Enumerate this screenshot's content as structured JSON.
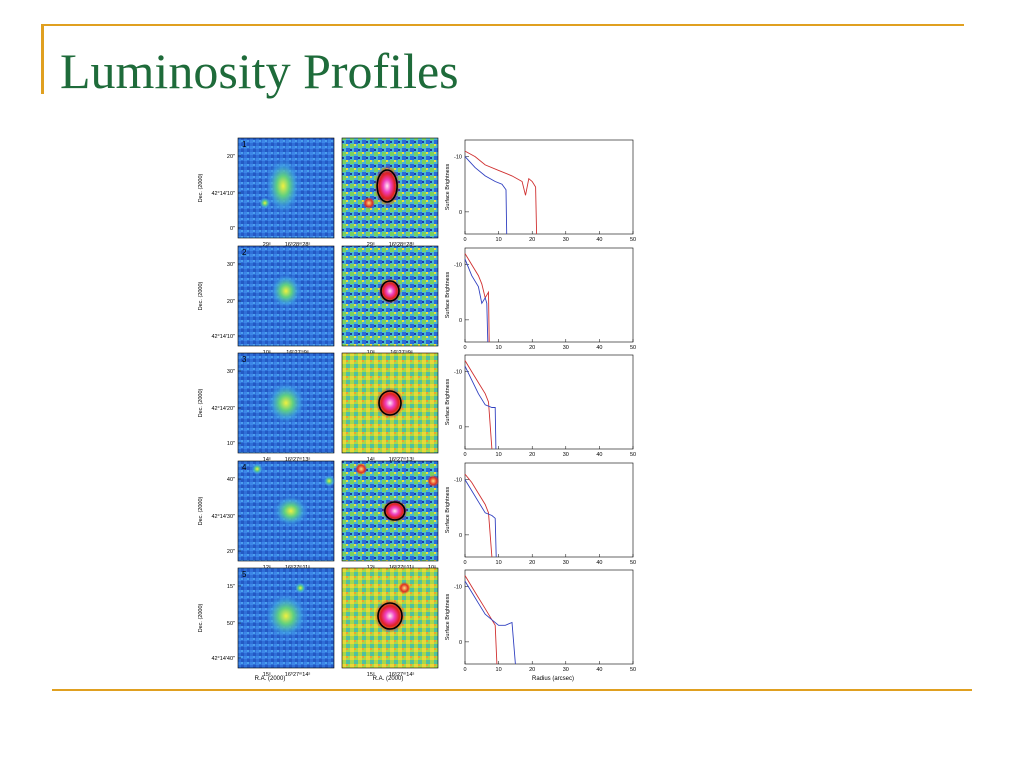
{
  "slide": {
    "title": "Luminosity Profiles"
  },
  "figure": {
    "dec_label": "Dec. (2000)",
    "ra_label": "R.A. (2000)",
    "ylabel": "Surface Brightness",
    "xlabel": "Radius (arcsec)",
    "ytick_neg10": "-10",
    "ytick_0": "0",
    "xticks": [
      "0",
      "10",
      "20",
      "30",
      "40",
      "50"
    ],
    "rows": [
      {
        "num": "1",
        "dec_ticks": [
          "20\"",
          "42°14'10\"",
          "0\""
        ],
        "ra_left": "29ˢ",
        "ra_right": "16ʰ28ᵐ28ˢ"
      },
      {
        "num": "2",
        "dec_ticks": [
          "30\"",
          "20\"",
          "42°14'10\""
        ],
        "ra_left": "10ˢ",
        "ra_right": "16ʰ27ᵐ9ˢ"
      },
      {
        "num": "3",
        "dec_ticks": [
          "30\"",
          "42°14'20\"",
          "10\""
        ],
        "ra_left": "14ˢ",
        "ra_right": "16ʰ27ᵐ13ˢ"
      },
      {
        "num": "4",
        "dec_ticks": [
          "40\"",
          "42°14'30\"",
          "20\""
        ],
        "ra_left": "12ˢ",
        "ra_right": "16ʰ27ᵐ11ˢ",
        "ra_extra": "10ˢ"
      },
      {
        "num": "5",
        "dec_ticks": [
          "15\"",
          "50\"",
          "42°14'40\""
        ],
        "ra_left": "15ˢ",
        "ra_right": "16ʰ27ᵐ14ˢ"
      }
    ]
  },
  "colors": {
    "title": "#1e6b3a",
    "rule": "#e0a020",
    "red_profile": "#d03030",
    "blue_profile": "#3040c0"
  }
}
